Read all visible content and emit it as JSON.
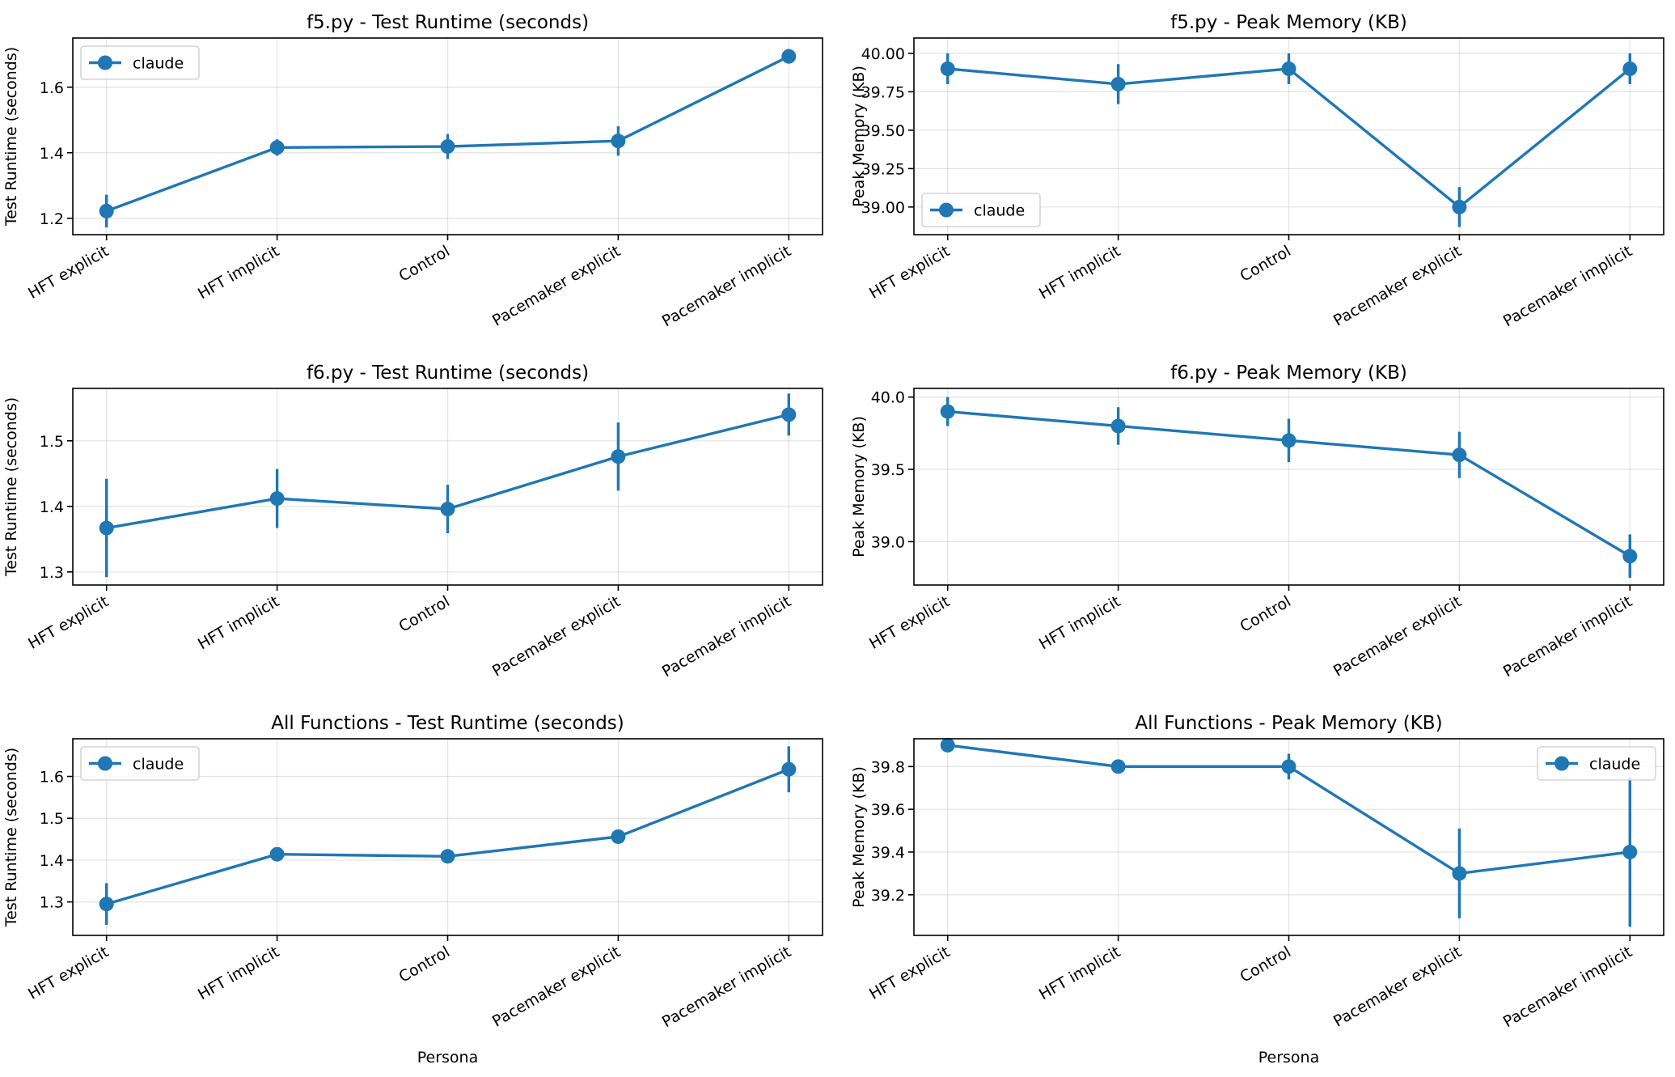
{
  "colors": {
    "series": "#1f77b4"
  },
  "xlabel_bottom": "Persona",
  "chart_data": [
    {
      "type": "line",
      "title": "f5.py - Test Runtime (seconds)",
      "xlabel": "",
      "ylabel": "Test Runtime (seconds)",
      "categories": [
        "HFT explicit",
        "HFT implicit",
        "Control",
        "Pacemaker explicit",
        "Pacemaker implicit"
      ],
      "ylim": [
        1.15,
        1.75
      ],
      "yticks": [
        1.2,
        1.4,
        1.6
      ],
      "ytick_labels": [
        "1.2",
        "1.4",
        "1.6"
      ],
      "legend": "top-left",
      "grid": true,
      "series": [
        {
          "name": "claude",
          "values": [
            1.222,
            1.416,
            1.419,
            1.436,
            1.694
          ],
          "errors": [
            0.05,
            0.025,
            0.038,
            0.045,
            0.022
          ]
        }
      ]
    },
    {
      "type": "line",
      "title": "f5.py - Peak Memory (KB)",
      "xlabel": "",
      "ylabel": "Peak Memory (KB)",
      "categories": [
        "HFT explicit",
        "HFT implicit",
        "Control",
        "Pacemaker explicit",
        "Pacemaker implicit"
      ],
      "ylim": [
        38.82,
        40.1
      ],
      "yticks": [
        39.0,
        39.25,
        39.5,
        39.75,
        40.0
      ],
      "ytick_labels": [
        "39.00",
        "39.25",
        "39.50",
        "39.75",
        "40.00"
      ],
      "legend": "bottom-left",
      "grid": true,
      "series": [
        {
          "name": "claude",
          "values": [
            39.9,
            39.8,
            39.9,
            39.0,
            39.9
          ],
          "errors": [
            0.1,
            0.13,
            0.1,
            0.13,
            0.1
          ]
        }
      ]
    },
    {
      "type": "line",
      "title": "f6.py - Test Runtime (seconds)",
      "xlabel": "",
      "ylabel": "Test Runtime (seconds)",
      "categories": [
        "HFT explicit",
        "HFT implicit",
        "Control",
        "Pacemaker explicit",
        "Pacemaker implicit"
      ],
      "ylim": [
        1.28,
        1.58
      ],
      "yticks": [
        1.3,
        1.4,
        1.5
      ],
      "ytick_labels": [
        "1.3",
        "1.4",
        "1.5"
      ],
      "legend": "none",
      "grid": true,
      "series": [
        {
          "name": "claude",
          "values": [
            1.367,
            1.412,
            1.396,
            1.476,
            1.54
          ],
          "errors": [
            0.075,
            0.045,
            0.037,
            0.052,
            0.032
          ]
        }
      ]
    },
    {
      "type": "line",
      "title": "f6.py - Peak Memory (KB)",
      "xlabel": "",
      "ylabel": "Peak Memory (KB)",
      "categories": [
        "HFT explicit",
        "HFT implicit",
        "Control",
        "Pacemaker explicit",
        "Pacemaker implicit"
      ],
      "ylim": [
        38.7,
        40.06
      ],
      "yticks": [
        39.0,
        39.5,
        40.0
      ],
      "ytick_labels": [
        "39.0",
        "39.5",
        "40.0"
      ],
      "legend": "none",
      "grid": true,
      "series": [
        {
          "name": "claude",
          "values": [
            39.9,
            39.8,
            39.7,
            39.6,
            38.9
          ],
          "errors": [
            0.1,
            0.13,
            0.15,
            0.16,
            0.15
          ]
        }
      ]
    },
    {
      "type": "line",
      "title": "All Functions - Test Runtime (seconds)",
      "xlabel": "Persona",
      "ylabel": "Test Runtime (seconds)",
      "categories": [
        "HFT explicit",
        "HFT implicit",
        "Control",
        "Pacemaker explicit",
        "Pacemaker implicit"
      ],
      "ylim": [
        1.22,
        1.69
      ],
      "yticks": [
        1.3,
        1.4,
        1.5,
        1.6
      ],
      "ytick_labels": [
        "1.3",
        "1.4",
        "1.5",
        "1.6"
      ],
      "legend": "top-left",
      "grid": true,
      "series": [
        {
          "name": "claude",
          "values": [
            1.295,
            1.414,
            1.409,
            1.456,
            1.617
          ],
          "errors": [
            0.05,
            0.008,
            0.008,
            0.008,
            0.055
          ]
        }
      ]
    },
    {
      "type": "line",
      "title": "All Functions - Peak Memory (KB)",
      "xlabel": "Persona",
      "ylabel": "Peak Memory (KB)",
      "categories": [
        "HFT explicit",
        "HFT implicit",
        "Control",
        "Pacemaker explicit",
        "Pacemaker implicit"
      ],
      "ylim": [
        39.01,
        39.93
      ],
      "yticks": [
        39.2,
        39.4,
        39.6,
        39.8
      ],
      "ytick_labels": [
        "39.2",
        "39.4",
        "39.6",
        "39.8"
      ],
      "legend": "top-right",
      "grid": true,
      "series": [
        {
          "name": "claude",
          "values": [
            39.9,
            39.8,
            39.8,
            39.3,
            39.4
          ],
          "errors": [
            0.01,
            0.01,
            0.06,
            0.21,
            0.35
          ]
        }
      ]
    }
  ]
}
